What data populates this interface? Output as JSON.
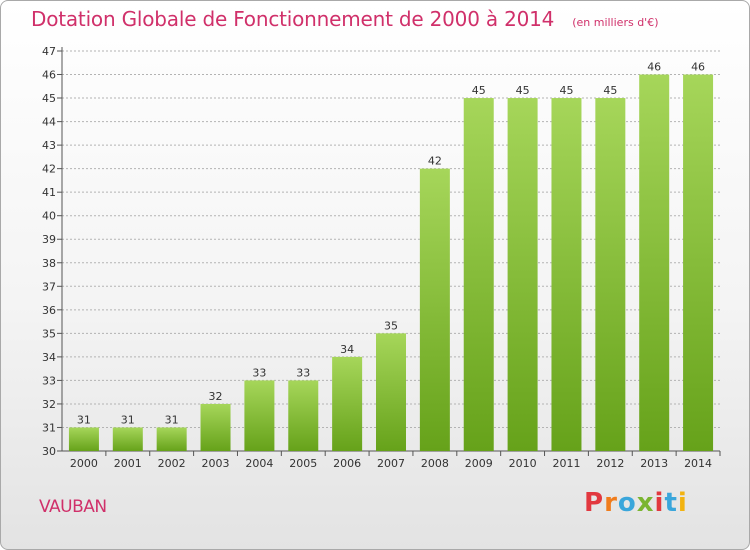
{
  "header": {
    "title": "Dotation Globale de Fonctionnement de 2000 à 2014",
    "subtitle": "(en milliers d'€)"
  },
  "footer": {
    "commune": "VAUBAN",
    "logo_text": "Proxiti",
    "logo_colors": [
      "#e2383f",
      "#f07c1c",
      "#3aa6db",
      "#7bb531",
      "#e2383f",
      "#3aa6db",
      "#f2b311"
    ]
  },
  "colors": {
    "title": "#d0306a",
    "bar_light": "#a6d65a",
    "bar_dark": "#66a21a",
    "grid": "#b3b3b3"
  },
  "chart_data": {
    "type": "bar",
    "title": "Dotation Globale de Fonctionnement de 2000 à 2014",
    "subtitle": "(en milliers d'€)",
    "xlabel": "",
    "ylabel": "",
    "categories": [
      "2000",
      "2001",
      "2002",
      "2003",
      "2004",
      "2005",
      "2006",
      "2007",
      "2008",
      "2009",
      "2010",
      "2011",
      "2012",
      "2013",
      "2014"
    ],
    "values": [
      31,
      31,
      31,
      32,
      33,
      33,
      34,
      35,
      42,
      45,
      45,
      45,
      45,
      46,
      46
    ],
    "ylim": [
      30,
      47
    ],
    "yticks": [
      30,
      31,
      32,
      33,
      34,
      35,
      36,
      37,
      38,
      39,
      40,
      41,
      42,
      43,
      44,
      45,
      46,
      47
    ],
    "grid": true,
    "legend": "none",
    "data_labels": true
  }
}
